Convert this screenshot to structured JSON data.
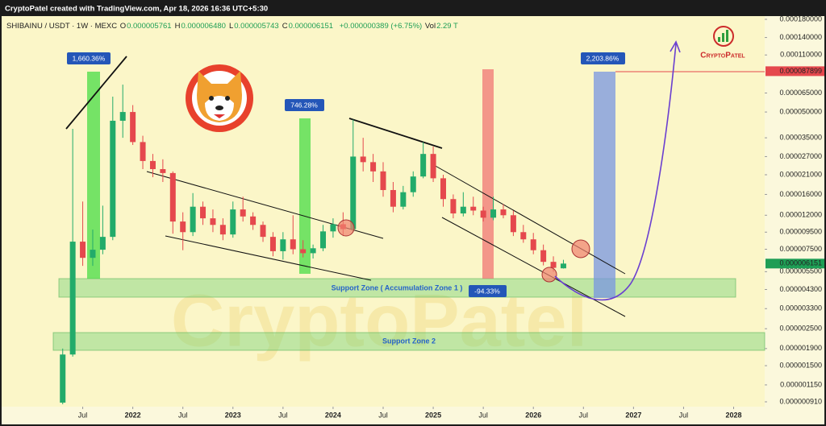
{
  "header": "CryptoPatel created with TradingView.com, Apr 18, 2026 16:36 UTC+5:30",
  "chart_data": {
    "type": "candlestick",
    "symbol": "SHIBAINU / USDT · 1W · MEXC",
    "ohlc": [
      {
        "label": "O",
        "value": "0.000005761"
      },
      {
        "label": "H",
        "value": "0.000006480"
      },
      {
        "label": "L",
        "value": "0.000005743"
      },
      {
        "label": "C",
        "value": "0.000006151"
      }
    ],
    "change": "+0.000000389 (+6.75%)",
    "volume": {
      "label": "Vol",
      "value": "2.29 T"
    },
    "brand": "CryptoPatel",
    "annotations": [
      "1,660.36%",
      "746.28%",
      "-94.33%",
      "2,203.86%",
      "Support Zone ( Accumulation Zone 1 )",
      "Support Zone 2"
    ],
    "log_scale": true,
    "up_color": "#22ab6a",
    "down_color": "#e5484d",
    "x": [
      2021.3,
      2021.4,
      2021.5,
      2021.6,
      2021.7,
      2021.8,
      2021.9,
      2022.0,
      2022.1,
      2022.2,
      2022.3,
      2022.4,
      2022.5,
      2022.6,
      2022.7,
      2022.8,
      2022.9,
      2023.0,
      2023.1,
      2023.2,
      2023.3,
      2023.4,
      2023.5,
      2023.6,
      2023.7,
      2023.8,
      2023.9,
      2024.0,
      2024.1,
      2024.2,
      2024.3,
      2024.4,
      2024.5,
      2024.6,
      2024.7,
      2024.8,
      2024.9,
      2025.0,
      2025.1,
      2025.2,
      2025.3,
      2025.4,
      2025.5,
      2025.6,
      2025.7,
      2025.8,
      2025.9,
      2026.0,
      2026.1,
      2026.2,
      2026.3
    ],
    "open": [
      9e-07,
      1.75e-06,
      8.33e-06,
      6.66e-06,
      7.45e-06,
      8.9e-06,
      4.43e-05,
      5e-05,
      3.3e-05,
      2.54e-05,
      2.27e-05,
      2.15e-05,
      1.1e-05,
      9.5e-06,
      1.35e-05,
      1.15e-05,
      1.05e-05,
      9.2e-06,
      1.3e-05,
      1.18e-05,
      1.05e-05,
      8.9e-06,
      7.3e-06,
      8.6e-06,
      7.5e-06,
      7.1e-06,
      7.6e-06,
      9.6e-06,
      1.06e-05,
      9.9e-06,
      2.7e-05,
      2.5e-05,
      2.2e-05,
      1.7e-05,
      1.35e-05,
      1.65e-05,
      2.05e-05,
      2.8e-05,
      2e-05,
      1.5e-05,
      1.23e-05,
      1.35e-05,
      1.28e-05,
      1.16e-05,
      1.3e-05,
      1.2e-05,
      9.5e-06,
      8.6e-06,
      7.4e-06,
      6.3e-06,
      5.761e-06
    ],
    "high": [
      1.9e-06,
      3.96e-05,
      1.45e-05,
      9.84e-06,
      1.37e-05,
      6.18e-05,
      7.3e-05,
      5.5e-05,
      3.6e-05,
      2.8e-05,
      2.6e-05,
      2.2e-05,
      1.25e-05,
      1.63e-05,
      1.45e-05,
      1.3e-05,
      1.15e-05,
      1.45e-05,
      1.55e-05,
      1.25e-05,
      1.1e-05,
      9.5e-06,
      9.5e-06,
      1.2e-05,
      8.5e-06,
      8e-06,
      1.05e-05,
      1.15e-05,
      1.25e-05,
      4.5e-05,
      3.5e-05,
      2.8e-05,
      2.5e-05,
      1.9e-05,
      1.8e-05,
      2.2e-05,
      3.3e-05,
      3.1e-05,
      2.1e-05,
      1.6e-05,
      1.65e-05,
      1.55e-05,
      1.35e-05,
      1.55e-05,
      1.4e-05,
      1.28e-05,
      1.05e-05,
      9.4e-06,
      8e-06,
      6.8e-06,
      6.48e-06
    ],
    "low": [
      8.8e-07,
      1.7e-06,
      5.96e-06,
      5.96e-06,
      7e-06,
      8.5e-06,
      3.5e-05,
      3.17e-05,
      2.27e-05,
      2.03e-05,
      1.9e-05,
      9.3e-06,
      7.4e-06,
      9e-06,
      1.05e-05,
      9.5e-06,
      8.5e-06,
      8.8e-06,
      1.1e-05,
      9.8e-06,
      8.3e-06,
      6.8e-06,
      6.5e-06,
      7e-06,
      6.7e-06,
      6.6e-06,
      7.3e-06,
      8.8e-06,
      9e-06,
      9.5e-06,
      2.2e-05,
      1.9e-05,
      1.55e-05,
      1.25e-05,
      1.3e-05,
      1.55e-05,
      2e-05,
      1.9e-05,
      1.35e-05,
      1.15e-05,
      1.18e-05,
      1.2e-05,
      1.1e-05,
      1.12e-05,
      1.15e-05,
      9e-06,
      8.2e-06,
      7e-06,
      6e-06,
      5.5e-06,
      5.743e-06
    ],
    "close": [
      1.75e-06,
      8.33e-06,
      6.66e-06,
      7.45e-06,
      8.9e-06,
      4.43e-05,
      5e-05,
      3.3e-05,
      2.54e-05,
      2.27e-05,
      2.15e-05,
      1.1e-05,
      9.5e-06,
      1.35e-05,
      1.15e-05,
      1.05e-05,
      9.2e-06,
      1.3e-05,
      1.18e-05,
      1.05e-05,
      8.9e-06,
      7.3e-06,
      8.6e-06,
      7.5e-06,
      7.1e-06,
      7.6e-06,
      9.6e-06,
      1.06e-05,
      9.9e-06,
      2.7e-05,
      2.5e-05,
      2.2e-05,
      1.7e-05,
      1.35e-05,
      1.65e-05,
      2.05e-05,
      2.8e-05,
      2e-05,
      1.5e-05,
      1.23e-05,
      1.35e-05,
      1.28e-05,
      1.16e-05,
      1.3e-05,
      1.2e-05,
      9.5e-06,
      8.6e-06,
      7.4e-06,
      6.3e-06,
      5.8e-06,
      6.151e-06
    ],
    "xlim": [
      2020.69,
      2028.31
    ],
    "xticks": [
      {
        "value": 2021.5,
        "label": "Jul"
      },
      2022,
      {
        "value": 2022.5,
        "label": "Jul"
      },
      2023,
      {
        "value": 2023.5,
        "label": "Jul"
      },
      2024,
      {
        "value": 2024.5,
        "label": "Jul"
      },
      2025,
      {
        "value": 2025.5,
        "label": "Jul"
      },
      2026,
      {
        "value": 2026.5,
        "label": "Jul"
      },
      2027,
      {
        "value": 2027.5,
        "label": "Jul"
      },
      2028
    ],
    "ylim": [
      8.51e-07,
      0.0001882
    ],
    "yticks": [
      {
        "value": 0.00018,
        "label": "0.000180000"
      },
      {
        "value": 0.00014,
        "label": "0.000140000"
      },
      {
        "value": 0.00011,
        "label": "0.000110000"
      },
      {
        "value": 6.5e-05,
        "label": "0.000065000"
      },
      {
        "value": 5e-05,
        "label": "0.000050000"
      },
      {
        "value": 3.5e-05,
        "label": "0.000035000"
      },
      {
        "value": 2.7e-05,
        "label": "0.000027000"
      },
      {
        "value": 2.1e-05,
        "label": "0.000021000"
      },
      {
        "value": 1.6e-05,
        "label": "0.000016000"
      },
      {
        "value": 1.2e-05,
        "label": "0.000012000"
      },
      {
        "value": 9.5e-06,
        "label": "0.000009500"
      },
      {
        "value": 7.5e-06,
        "label": "0.000007500"
      },
      {
        "value": 5.5e-06,
        "label": "0.000005500"
      },
      {
        "value": 4.3e-06,
        "label": "0.000004300"
      },
      {
        "value": 3.3e-06,
        "label": "0.000003300"
      },
      {
        "value": 2.5e-06,
        "label": "0.000002500"
      },
      {
        "value": 1.9e-06,
        "label": "0.000001900"
      },
      {
        "value": 1.5e-06,
        "label": "0.000001500"
      },
      {
        "value": 1.15e-06,
        "label": "0.000001150"
      },
      {
        "value": 9.1e-07,
        "label": "0.000000910"
      }
    ],
    "price_markers": [
      {
        "value": 8.7899e-05,
        "label": "0.000087899",
        "color": "#e5484d"
      },
      {
        "value": 6.151e-06,
        "label": "0.000006151",
        "color": "#1e9e55"
      }
    ]
  }
}
